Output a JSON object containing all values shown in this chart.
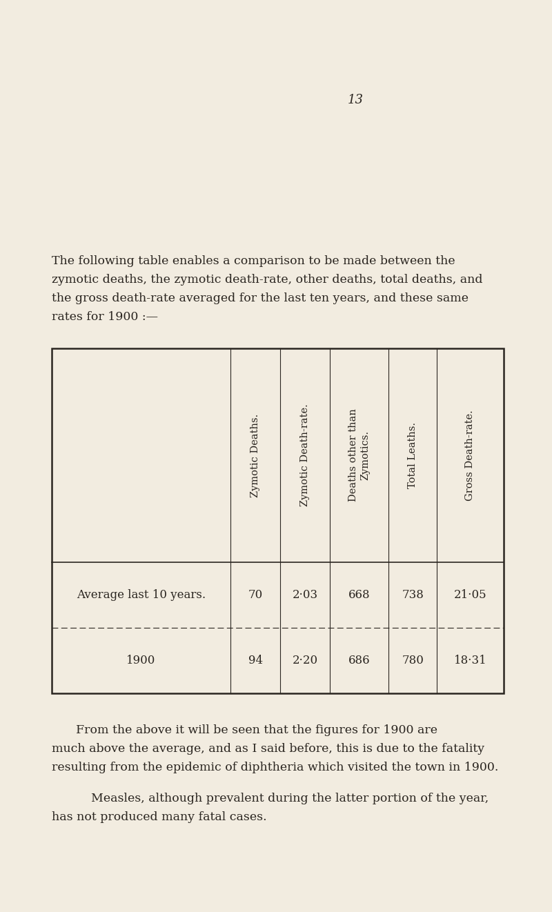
{
  "page_number": "13",
  "bg_color": "#f2ece0",
  "text_color": "#2a2520",
  "intro_line1": "The following table enables a comparison to be made between the",
  "intro_line2": "zymotic deaths, the zymotic death-rate, other deaths, total deaths, and",
  "intro_line3": "the gross death-rate averaged for the last ten years, and these same",
  "intro_line4": "rates for 1900 :—",
  "col_headers": [
    "Zymotic Deaths.",
    "Zymotic Death-rate.",
    "Deaths other than\nZymotics.",
    "Total Leaths.",
    "Gross Death-rate."
  ],
  "row_labels": [
    "Average last 10 years.",
    "1900"
  ],
  "table_data": [
    [
      "70",
      "2·03",
      "668",
      "738",
      "21·05"
    ],
    [
      "94",
      "2·20",
      "686",
      "780",
      "18·31"
    ]
  ],
  "footer1_line1": "From the above it will be seen that the figures for 1900 are",
  "footer1_line2": "much above the average, and as I said before, this is due to the fatality",
  "footer1_line3": "resulting from the epidemic of diphtheria which visited the town in 1900.",
  "footer2_line1": "    Measles, although prevalent during the latter portion of the year,",
  "footer2_line2": "has not produced many fatal cases."
}
